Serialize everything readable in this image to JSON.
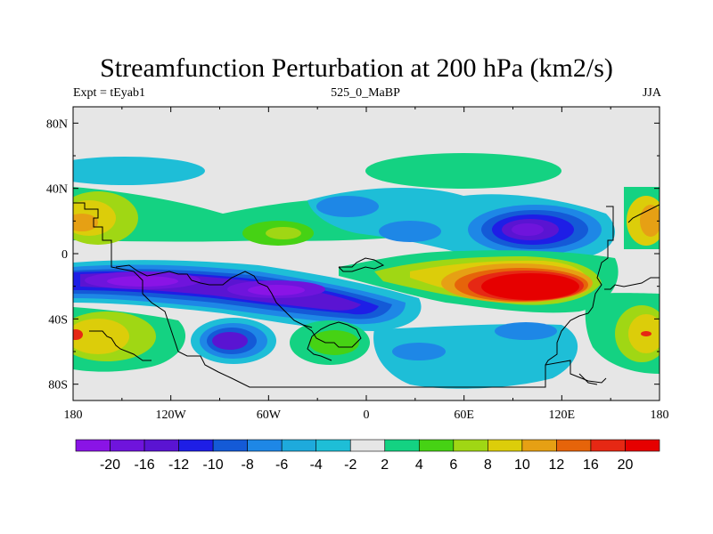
{
  "title": "Streamfunction Perturbation at 200 hPa (km2/s)",
  "left_string": "Expt = tEyab1",
  "center_string": "525_0_MaBP",
  "right_string": "JJA",
  "lat_labels": [
    "80N",
    "40N",
    "0",
    "40S",
    "80S"
  ],
  "lat_values": [
    80,
    40,
    0,
    -40,
    -80
  ],
  "lon_labels": [
    "180",
    "120W",
    "60W",
    "0",
    "60E",
    "120E",
    "180"
  ],
  "lon_values": [
    -180,
    -120,
    -60,
    0,
    60,
    120,
    180
  ],
  "map_extent": {
    "lon": [
      -180,
      180
    ],
    "lat": [
      -90,
      90
    ]
  },
  "colorbar": {
    "levels": [
      "-20",
      "-16",
      "-12",
      "-10",
      "-8",
      "-6",
      "-4",
      "-2",
      "2",
      "4",
      "6",
      "8",
      "10",
      "12",
      "16",
      "20"
    ],
    "colors": [
      "#8a14e6",
      "#6f14dc",
      "#5a14d2",
      "#1e1ee6",
      "#145ad7",
      "#1e87e6",
      "#1eaadc",
      "#1ebed7",
      "#e6e6e6",
      "#14d282",
      "#46d214",
      "#a0d714",
      "#dccd0a",
      "#e6a014",
      "#e6640a",
      "#e62814",
      "#e60000"
    ]
  },
  "palette": {
    "background_field": "#e6e6e6",
    "coastline": "#000000",
    "frame": "#000000"
  }
}
